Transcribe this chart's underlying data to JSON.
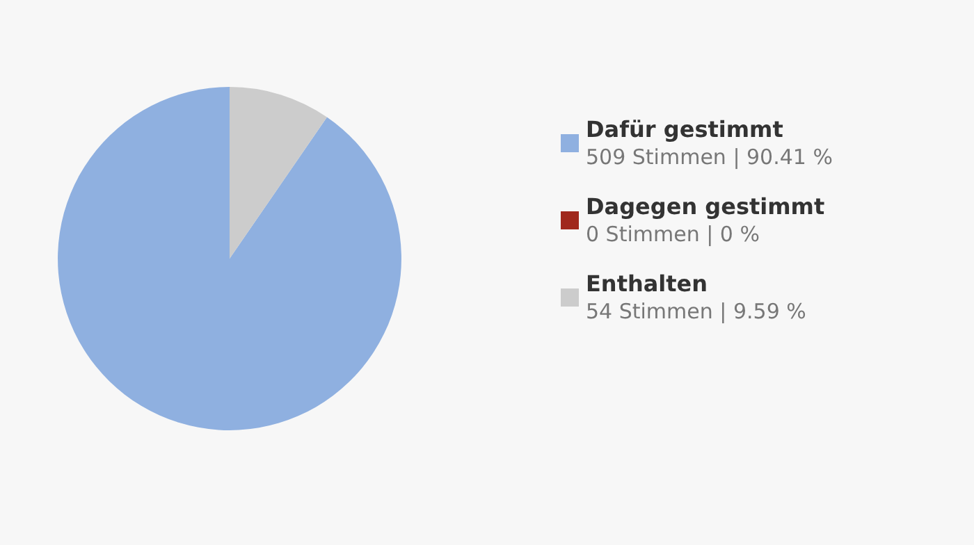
{
  "chart_data": {
    "type": "pie",
    "categories": [
      "Dafür gestimmt",
      "Dagegen gestimmt",
      "Enthalten"
    ],
    "values": [
      509,
      0,
      54
    ],
    "colors": [
      "#8fb0e0",
      "#a0281c",
      "#cccccc"
    ],
    "value_labels": [
      "509 Stimmen | 90.41 %",
      "0 Stimmen | 0 %",
      "54 Stimmen | 9.59 %"
    ],
    "legend": "right"
  }
}
